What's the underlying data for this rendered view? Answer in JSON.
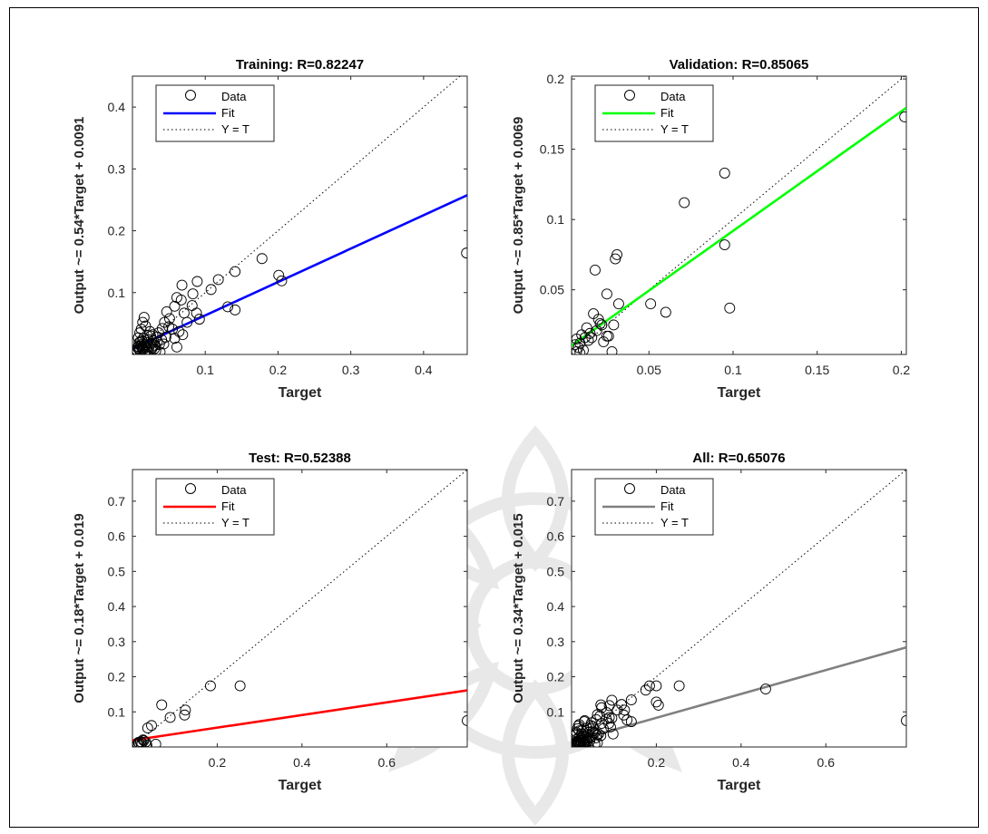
{
  "chart_data": [
    {
      "type": "scatter",
      "title": "Training: R=0.82247",
      "xlabel": "Target",
      "ylabel": "Output ~= 0.54*Target + 0.0091",
      "xlim": [
        0.0,
        0.46
      ],
      "ylim": [
        0.0,
        0.45
      ],
      "xticks": [
        0.1,
        0.2,
        0.3,
        0.4
      ],
      "xtick_labels": [
        "0.1",
        "0.2",
        "0.3",
        "0.4"
      ],
      "yticks": [
        0.1,
        0.2,
        0.3,
        0.4
      ],
      "ytick_labels": [
        "0.1",
        "0.2",
        "0.3",
        "0.4"
      ],
      "legend": {
        "position": "top-left",
        "entries": [
          "Data",
          "Fit",
          "Y = T"
        ]
      },
      "fit": {
        "slope": 0.54,
        "intercept": 0.0091,
        "color": "#0000ff"
      },
      "grid": false,
      "points": [
        [
          0.459,
          0.164
        ],
        [
          0.178,
          0.155
        ],
        [
          0.141,
          0.134
        ],
        [
          0.118,
          0.121
        ],
        [
          0.108,
          0.105
        ],
        [
          0.201,
          0.128
        ],
        [
          0.205,
          0.119
        ],
        [
          0.131,
          0.077
        ],
        [
          0.141,
          0.072
        ],
        [
          0.089,
          0.118
        ],
        [
          0.068,
          0.112
        ],
        [
          0.083,
          0.098
        ],
        [
          0.067,
          0.088
        ],
        [
          0.061,
          0.092
        ],
        [
          0.058,
          0.078
        ],
        [
          0.082,
          0.079
        ],
        [
          0.088,
          0.067
        ],
        [
          0.092,
          0.057
        ],
        [
          0.071,
          0.067
        ],
        [
          0.075,
          0.052
        ],
        [
          0.047,
          0.069
        ],
        [
          0.051,
          0.058
        ],
        [
          0.044,
          0.052
        ],
        [
          0.05,
          0.045
        ],
        [
          0.055,
          0.041
        ],
        [
          0.064,
          0.037
        ],
        [
          0.069,
          0.032
        ],
        [
          0.058,
          0.026
        ],
        [
          0.061,
          0.012
        ],
        [
          0.041,
          0.042
        ],
        [
          0.036,
          0.035
        ],
        [
          0.033,
          0.028
        ],
        [
          0.029,
          0.022
        ],
        [
          0.031,
          0.015
        ],
        [
          0.027,
          0.01
        ],
        [
          0.025,
          0.03
        ],
        [
          0.022,
          0.024
        ],
        [
          0.02,
          0.019
        ],
        [
          0.018,
          0.014
        ],
        [
          0.016,
          0.012
        ],
        [
          0.014,
          0.008
        ],
        [
          0.012,
          0.016
        ],
        [
          0.011,
          0.021
        ],
        [
          0.009,
          0.009
        ],
        [
          0.008,
          0.013
        ],
        [
          0.007,
          0.011
        ],
        [
          0.006,
          0.007
        ],
        [
          0.01,
          0.006
        ],
        [
          0.013,
          0.011
        ],
        [
          0.015,
          0.009
        ],
        [
          0.017,
          0.016
        ],
        [
          0.019,
          0.011
        ],
        [
          0.021,
          0.008
        ],
        [
          0.023,
          0.013
        ],
        [
          0.026,
          0.018
        ],
        [
          0.028,
          0.012
        ],
        [
          0.03,
          0.009
        ],
        [
          0.034,
          0.02
        ],
        [
          0.037,
          0.016
        ],
        [
          0.04,
          0.024
        ],
        [
          0.043,
          0.017
        ],
        [
          0.046,
          0.028
        ],
        [
          0.012,
          0.041
        ],
        [
          0.014,
          0.052
        ],
        [
          0.016,
          0.06
        ],
        [
          0.018,
          0.046
        ],
        [
          0.01,
          0.035
        ],
        [
          0.02,
          0.031
        ],
        [
          0.024,
          0.037
        ],
        [
          0.028,
          0.032
        ],
        [
          0.008,
          0.027
        ],
        [
          0.009,
          0.019
        ],
        [
          0.011,
          0.014
        ],
        [
          0.013,
          0.022
        ],
        [
          0.015,
          0.026
        ],
        [
          0.017,
          0.005
        ],
        [
          0.022,
          0.004
        ],
        [
          0.032,
          0.006
        ],
        [
          0.038,
          0.004
        ],
        [
          0.005,
          0.004
        ]
      ]
    },
    {
      "type": "scatter",
      "title": "Validation: R=0.85065",
      "xlabel": "Target",
      "ylabel": "Output ~= 0.85*Target + 0.0069",
      "xlim": [
        0.004,
        0.203
      ],
      "ylim": [
        0.004,
        0.202
      ],
      "xticks": [
        0.05,
        0.1,
        0.15,
        0.2
      ],
      "xtick_labels": [
        "0.05",
        "0.1",
        "0.15",
        "0.2"
      ],
      "yticks": [
        0.05,
        0.1,
        0.15,
        0.2
      ],
      "ytick_labels": [
        "0.05",
        "0.1",
        "0.15",
        "0.2"
      ],
      "legend": {
        "position": "top-left",
        "entries": [
          "Data",
          "Fit",
          "Y = T"
        ]
      },
      "fit": {
        "slope": 0.85,
        "intercept": 0.0069,
        "color": "#00ff00"
      },
      "grid": false,
      "points": [
        [
          0.202,
          0.173
        ],
        [
          0.095,
          0.133
        ],
        [
          0.071,
          0.112
        ],
        [
          0.095,
          0.082
        ],
        [
          0.098,
          0.037
        ],
        [
          0.051,
          0.04
        ],
        [
          0.06,
          0.034
        ],
        [
          0.031,
          0.075
        ],
        [
          0.03,
          0.072
        ],
        [
          0.025,
          0.047
        ],
        [
          0.032,
          0.04
        ],
        [
          0.018,
          0.064
        ],
        [
          0.029,
          0.025
        ],
        [
          0.028,
          0.006
        ],
        [
          0.025,
          0.017
        ],
        [
          0.022,
          0.025
        ],
        [
          0.02,
          0.029
        ],
        [
          0.017,
          0.033
        ],
        [
          0.019,
          0.021
        ],
        [
          0.023,
          0.013
        ],
        [
          0.015,
          0.019
        ],
        [
          0.013,
          0.023
        ],
        [
          0.012,
          0.016
        ],
        [
          0.01,
          0.018
        ],
        [
          0.009,
          0.012
        ],
        [
          0.008,
          0.009
        ],
        [
          0.007,
          0.006
        ],
        [
          0.006,
          0.011
        ],
        [
          0.011,
          0.007
        ],
        [
          0.014,
          0.014
        ],
        [
          0.016,
          0.016
        ],
        [
          0.009,
          0.005
        ],
        [
          0.007,
          0.015
        ],
        [
          0.021,
          0.026
        ],
        [
          0.026,
          0.017
        ]
      ]
    },
    {
      "type": "scatter",
      "title": "Test: R=0.52388",
      "xlabel": "Target",
      "ylabel": "Output ~= 0.18*Target + 0.019",
      "xlim": [
        0.0,
        0.79
      ],
      "ylim": [
        0.0,
        0.79
      ],
      "xticks": [
        0.2,
        0.4,
        0.6
      ],
      "xtick_labels": [
        "0.2",
        "0.4",
        "0.6"
      ],
      "yticks": [
        0.1,
        0.2,
        0.3,
        0.4,
        0.5,
        0.6,
        0.7
      ],
      "ytick_labels": [
        "0.1",
        "0.2",
        "0.3",
        "0.4",
        "0.5",
        "0.6",
        "0.7"
      ],
      "legend": {
        "position": "top-left",
        "entries": [
          "Data",
          "Fit",
          "Y = T"
        ]
      },
      "fit": {
        "slope": 0.18,
        "intercept": 0.019,
        "color": "#ff0000"
      },
      "grid": false,
      "points": [
        [
          0.79,
          0.075
        ],
        [
          0.184,
          0.174
        ],
        [
          0.254,
          0.174
        ],
        [
          0.069,
          0.12
        ],
        [
          0.125,
          0.105
        ],
        [
          0.123,
          0.091
        ],
        [
          0.089,
          0.084
        ],
        [
          0.045,
          0.061
        ],
        [
          0.036,
          0.054
        ],
        [
          0.055,
          0.008
        ],
        [
          0.031,
          0.014
        ],
        [
          0.027,
          0.018
        ],
        [
          0.022,
          0.012
        ],
        [
          0.019,
          0.015
        ],
        [
          0.016,
          0.01
        ],
        [
          0.014,
          0.013
        ],
        [
          0.012,
          0.009
        ],
        [
          0.021,
          0.006
        ],
        [
          0.034,
          0.005
        ],
        [
          0.025,
          0.02
        ]
      ]
    },
    {
      "type": "scatter",
      "title": "All: R=0.65076",
      "xlabel": "Target",
      "ylabel": "Output ~= 0.34*Target + 0.015",
      "xlim": [
        0.0,
        0.79
      ],
      "ylim": [
        0.0,
        0.79
      ],
      "xticks": [
        0.2,
        0.4,
        0.6
      ],
      "xtick_labels": [
        "0.2",
        "0.4",
        "0.6"
      ],
      "yticks": [
        0.1,
        0.2,
        0.3,
        0.4,
        0.5,
        0.6,
        0.7
      ],
      "ytick_labels": [
        "0.1",
        "0.2",
        "0.3",
        "0.4",
        "0.5",
        "0.6",
        "0.7"
      ],
      "legend": {
        "position": "top-left",
        "entries": [
          "Data",
          "Fit",
          "Y = T"
        ]
      },
      "fit": {
        "slope": 0.34,
        "intercept": 0.015,
        "color": "#808080"
      },
      "grid": false,
      "points": [
        [
          0.79,
          0.075
        ],
        [
          0.458,
          0.165
        ],
        [
          0.254,
          0.174
        ],
        [
          0.2,
          0.174
        ],
        [
          0.184,
          0.174
        ],
        [
          0.175,
          0.162
        ],
        [
          0.2,
          0.128
        ],
        [
          0.205,
          0.119
        ],
        [
          0.141,
          0.134
        ],
        [
          0.118,
          0.121
        ],
        [
          0.108,
          0.105
        ],
        [
          0.131,
          0.077
        ],
        [
          0.141,
          0.072
        ],
        [
          0.089,
          0.118
        ],
        [
          0.069,
          0.12
        ],
        [
          0.125,
          0.105
        ],
        [
          0.123,
          0.091
        ],
        [
          0.095,
          0.133
        ],
        [
          0.071,
          0.112
        ],
        [
          0.095,
          0.082
        ],
        [
          0.098,
          0.037
        ],
        [
          0.089,
          0.084
        ],
        [
          0.083,
          0.098
        ],
        [
          0.067,
          0.088
        ],
        [
          0.061,
          0.092
        ],
        [
          0.058,
          0.078
        ],
        [
          0.082,
          0.079
        ],
        [
          0.088,
          0.067
        ],
        [
          0.092,
          0.057
        ],
        [
          0.071,
          0.067
        ],
        [
          0.075,
          0.052
        ],
        [
          0.047,
          0.069
        ],
        [
          0.051,
          0.058
        ],
        [
          0.044,
          0.052
        ],
        [
          0.05,
          0.045
        ],
        [
          0.055,
          0.041
        ],
        [
          0.064,
          0.037
        ],
        [
          0.069,
          0.032
        ],
        [
          0.058,
          0.026
        ],
        [
          0.061,
          0.012
        ],
        [
          0.041,
          0.042
        ],
        [
          0.036,
          0.035
        ],
        [
          0.033,
          0.028
        ],
        [
          0.029,
          0.022
        ],
        [
          0.031,
          0.015
        ],
        [
          0.027,
          0.01
        ],
        [
          0.025,
          0.03
        ],
        [
          0.022,
          0.024
        ],
        [
          0.02,
          0.019
        ],
        [
          0.018,
          0.014
        ],
        [
          0.016,
          0.012
        ],
        [
          0.014,
          0.008
        ],
        [
          0.012,
          0.016
        ],
        [
          0.011,
          0.021
        ],
        [
          0.009,
          0.009
        ],
        [
          0.008,
          0.013
        ],
        [
          0.007,
          0.011
        ],
        [
          0.006,
          0.007
        ],
        [
          0.01,
          0.006
        ],
        [
          0.013,
          0.011
        ],
        [
          0.015,
          0.009
        ],
        [
          0.017,
          0.016
        ],
        [
          0.019,
          0.011
        ],
        [
          0.021,
          0.008
        ],
        [
          0.023,
          0.013
        ],
        [
          0.026,
          0.018
        ],
        [
          0.028,
          0.012
        ],
        [
          0.03,
          0.009
        ],
        [
          0.034,
          0.02
        ],
        [
          0.037,
          0.016
        ],
        [
          0.04,
          0.024
        ],
        [
          0.043,
          0.017
        ],
        [
          0.046,
          0.028
        ],
        [
          0.012,
          0.041
        ],
        [
          0.014,
          0.052
        ],
        [
          0.016,
          0.06
        ],
        [
          0.018,
          0.046
        ],
        [
          0.01,
          0.035
        ],
        [
          0.02,
          0.031
        ],
        [
          0.024,
          0.037
        ],
        [
          0.028,
          0.032
        ],
        [
          0.031,
          0.075
        ],
        [
          0.03,
          0.072
        ],
        [
          0.025,
          0.047
        ],
        [
          0.018,
          0.064
        ],
        [
          0.045,
          0.061
        ],
        [
          0.036,
          0.054
        ],
        [
          0.055,
          0.008
        ],
        [
          0.005,
          0.004
        ],
        [
          0.022,
          0.004
        ],
        [
          0.032,
          0.006
        ],
        [
          0.038,
          0.004
        ],
        [
          0.06,
          0.034
        ],
        [
          0.051,
          0.04
        ]
      ]
    }
  ]
}
